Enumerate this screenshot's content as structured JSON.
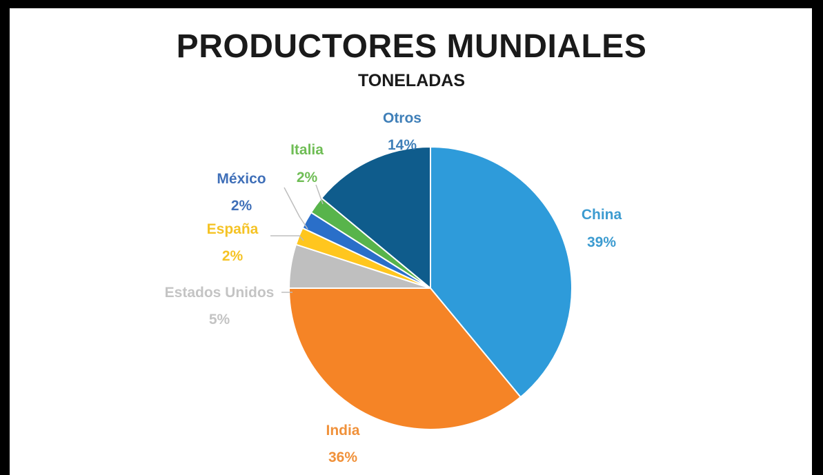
{
  "chart_data": {
    "type": "pie",
    "title": "PRODUCTORES MUNDIALES",
    "subtitle": "TONELADAS",
    "categories": [
      "China",
      "India",
      "Estados Unidos",
      "España",
      "México",
      "Italia",
      "Otros"
    ],
    "values": [
      39,
      36,
      5,
      2,
      2,
      2,
      14
    ],
    "labels": [
      "39%",
      "36%",
      "5%",
      "2%",
      "2%",
      "2%",
      "14%"
    ],
    "colors": [
      "#2E9BDA",
      "#F58426",
      "#BFBFBF",
      "#FFC61E",
      "#2A6FC9",
      "#58B44B",
      "#0F5C8C"
    ]
  }
}
